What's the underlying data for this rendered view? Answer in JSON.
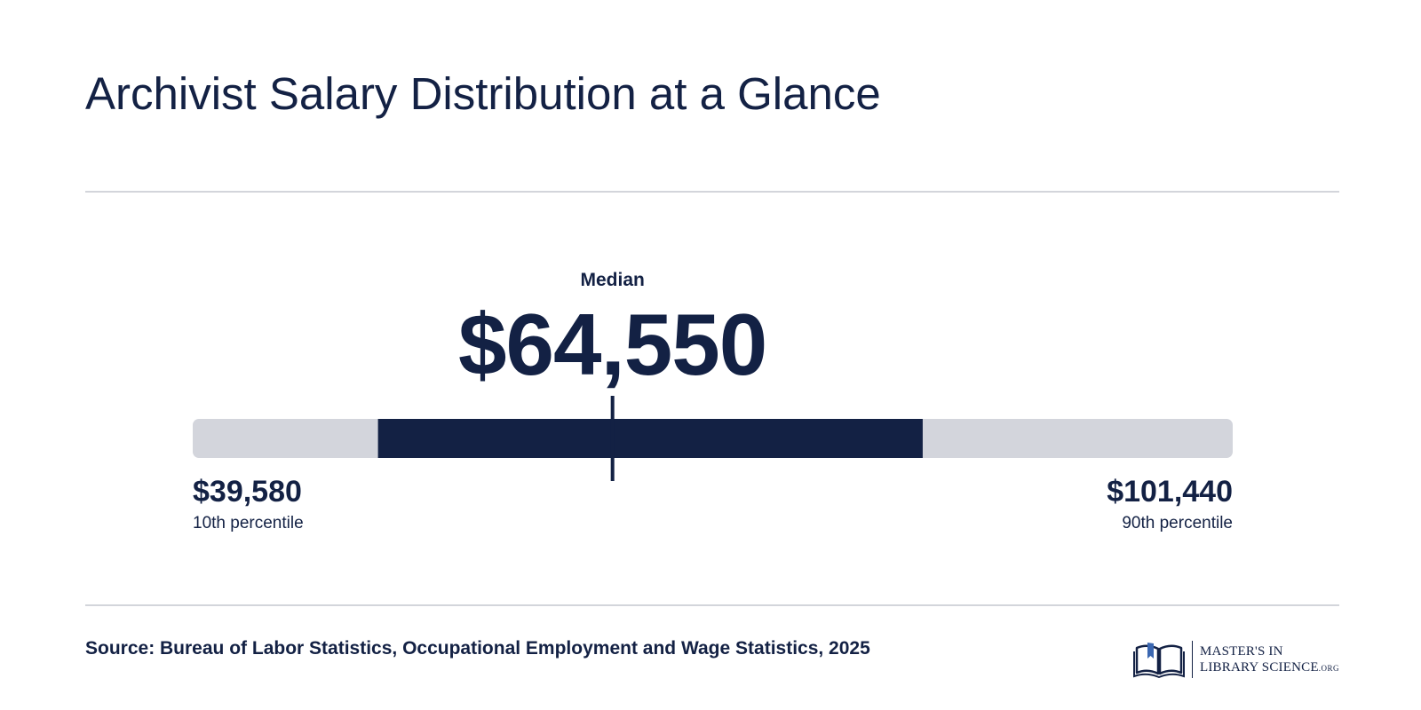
{
  "title": "Archivist Salary Distribution at a Glance",
  "chart_data": {
    "type": "range",
    "range": {
      "min": 39580,
      "max": 101440
    },
    "highlight": {
      "start": 50600,
      "end": 83000
    },
    "median": 64550,
    "points": [
      {
        "label": "10th percentile",
        "value_text": "$39,580",
        "value": 39580
      },
      {
        "label": "Median",
        "value_text": "$64,550",
        "value": 64550
      },
      {
        "label": "90th percentile",
        "value_text": "$101,440",
        "value": 101440
      }
    ]
  },
  "source": "Source: Bureau of Labor Statistics, Occupational Employment and Wage Statistics, 2025",
  "logo": {
    "line1": "MASTER'S IN",
    "line2": "LIBRARY SCIENCE",
    "suffix": ".ORG",
    "icon": "open-book-icon"
  },
  "colors": {
    "navy": "#132144",
    "track": "#d3d5dc",
    "accent": "#3b67b1"
  }
}
